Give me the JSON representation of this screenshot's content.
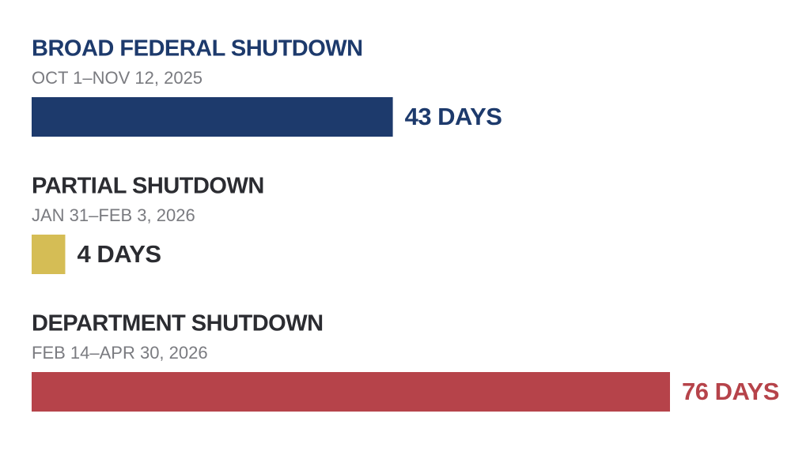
{
  "chart_data": {
    "type": "bar",
    "orientation": "horizontal",
    "categories": [
      "BROAD FEDERAL SHUTDOWN",
      "PARTIAL SHUTDOWN",
      "DEPARTMENT SHUTDOWN"
    ],
    "date_ranges": [
      "OCT 1–NOV 12, 2025",
      "JAN 31–FEB 3, 2026",
      "FEB 14–APR 30, 2026"
    ],
    "values": [
      43,
      4,
      76
    ],
    "value_labels": [
      "43 DAYS",
      "4 DAYS",
      "76 DAYS"
    ],
    "colors": [
      "#1d3a6c",
      "#d5bd55",
      "#b6434a"
    ],
    "label_colors": [
      "#1d3a6c",
      "#2b2c31",
      "#b6434a"
    ],
    "title_colors": [
      "#1d3a6c",
      "#2b2c31",
      "#2b2c31"
    ]
  }
}
